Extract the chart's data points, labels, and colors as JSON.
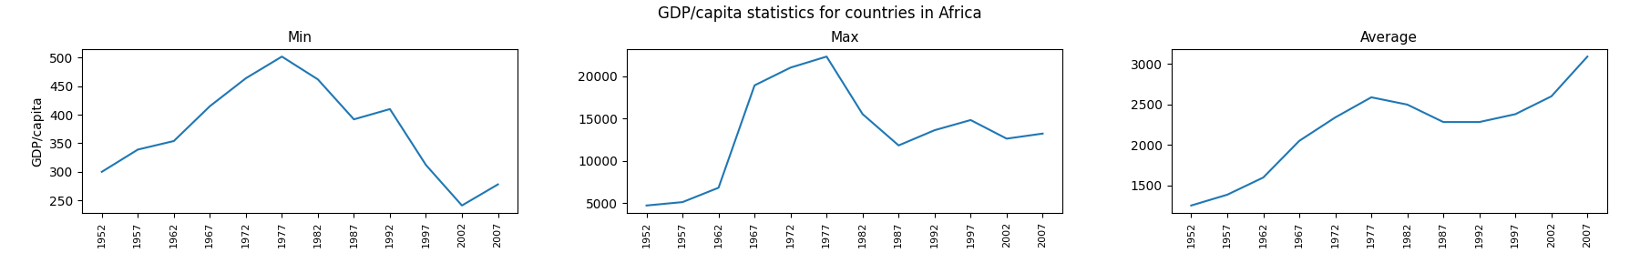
{
  "title": "GDP/capita statistics for countries in Africa",
  "years": [
    1952,
    1957,
    1962,
    1967,
    1972,
    1977,
    1982,
    1987,
    1992,
    1997,
    2002,
    2007
  ],
  "min_values": [
    300,
    339,
    354,
    415,
    464,
    502,
    462,
    392,
    410,
    312,
    241,
    278
  ],
  "max_values": [
    4700,
    5100,
    6800,
    18900,
    21000,
    22300,
    15500,
    11800,
    13600,
    14800,
    12600,
    13200
  ],
  "avg_values": [
    1253,
    1386,
    1598,
    2050,
    2339,
    2587,
    2497,
    2282,
    2282,
    2379,
    2599,
    3089
  ],
  "line_color": "#1f77b4",
  "ylabel": "GDP/capita",
  "subplot_titles": [
    "Min",
    "Max",
    "Average"
  ],
  "tick_rotation": 90,
  "tick_fontsize": 8,
  "title_fontsize": 12,
  "subtitle_fontsize": 11
}
